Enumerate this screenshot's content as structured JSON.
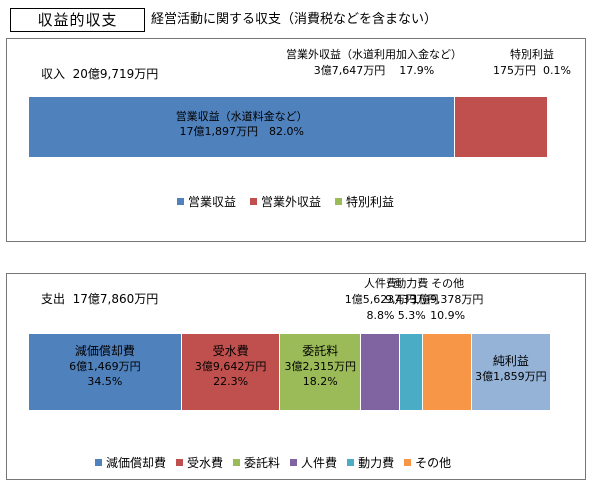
{
  "header": {
    "title": "収益的収支",
    "subtitle": "経営活動に関する収支（消費税などを含まない）"
  },
  "chart_data": [
    {
      "type": "bar",
      "orientation": "horizontal-stacked-100",
      "total_label": "収入",
      "total_value": "20億9,719万円",
      "series": [
        {
          "name": "営業収益",
          "label": "営業収益（水道料金など）",
          "amount": "17億1,897万円",
          "pct_label": "82.0%",
          "value": 82.0,
          "color": "#4F81BD"
        },
        {
          "name": "営業外収益",
          "label": "営業外収益（水道利用加入金など）",
          "amount": "3億7,647万円",
          "pct_label": "17.9%",
          "value": 17.9,
          "color": "#C0504D"
        },
        {
          "name": "特別利益",
          "label": "特別利益",
          "amount": "175万円",
          "pct_label": "0.1%",
          "value": 0.1,
          "color": "#9BBB59"
        }
      ],
      "legend": [
        "営業収益",
        "営業外収益",
        "特別利益"
      ],
      "legend_position": "bottom"
    },
    {
      "type": "bar",
      "orientation": "horizontal-stacked",
      "total_label": "支出",
      "total_value": "17億7,860万円",
      "series": [
        {
          "name": "減価償却費",
          "amount": "6億1,469万円",
          "pct_label": "34.5%",
          "value": 34.5,
          "color": "#4F81BD"
        },
        {
          "name": "受水費",
          "amount": "3億9,642万円",
          "pct_label": "22.3%",
          "value": 22.3,
          "color": "#C0504D"
        },
        {
          "name": "委託料",
          "amount": "3億2,315万円",
          "pct_label": "18.2%",
          "value": 18.2,
          "color": "#9BBB59"
        },
        {
          "name": "人件費",
          "amount": "1億5,623万円",
          "pct_label": "8.8%",
          "value": 8.8,
          "color": "#8064A2"
        },
        {
          "name": "動力費",
          "amount": "9,433万円",
          "pct_label": "5.3%",
          "value": 5.3,
          "color": "#4BACC6"
        },
        {
          "name": "その他",
          "amount": "1億9,378万円",
          "pct_label": "10.9%",
          "value": 10.9,
          "color": "#F79646"
        },
        {
          "name": "純利益",
          "amount": "3億1,859万円",
          "pct_label": "",
          "value": 17.9,
          "color": "#95B3D7"
        }
      ],
      "legend": [
        "減価償却費",
        "受水費",
        "委託料",
        "人件費",
        "動力費",
        "その他"
      ],
      "legend_position": "bottom"
    }
  ]
}
